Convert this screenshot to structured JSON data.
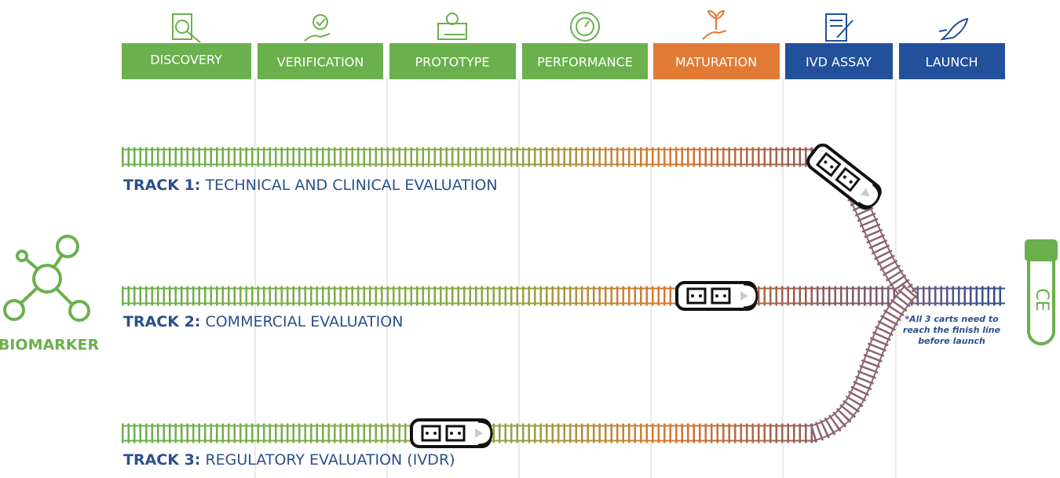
{
  "stages": [
    {
      "label": "DISCOVERY"
    },
    {
      "label": "VERIFICATION"
    },
    {
      "label": "PROTOTYPE"
    },
    {
      "label": "PERFORMANCE"
    },
    {
      "label": "MATURATION"
    },
    {
      "label": "IVD ASSAY"
    },
    {
      "label": "LAUNCH"
    }
  ],
  "tracks": [
    {
      "prefix": "TRACK 1:",
      "name": "TECHNICAL AND CLINICAL EVALUATION"
    },
    {
      "prefix": "TRACK 2:",
      "name": "COMMERCIAL EVALUATION"
    },
    {
      "prefix": "TRACK 3:",
      "name": "REGULATORY EVALUATION (IVDR)"
    }
  ],
  "biomarker": "BIOMARKER",
  "note": [
    "*All 3 carts need to",
    "reach the finish line",
    "before launch"
  ],
  "test_tube_mark": "CE"
}
